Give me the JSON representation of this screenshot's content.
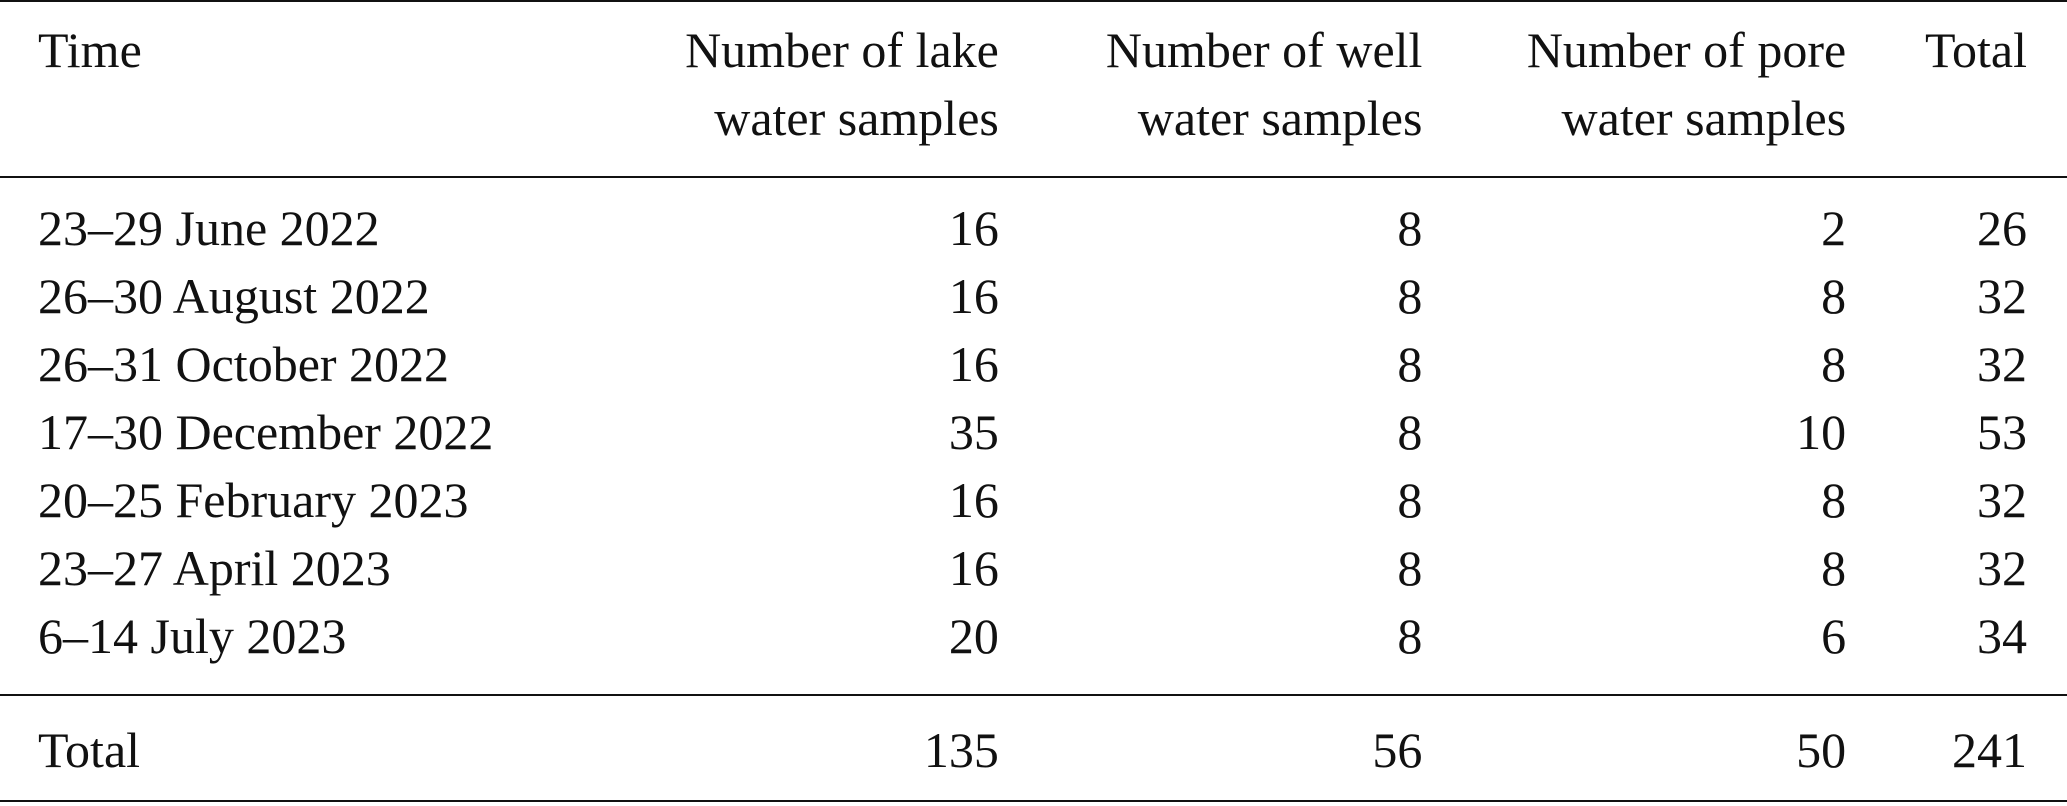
{
  "table": {
    "headers": [
      [
        "Time",
        ""
      ],
      [
        "Number of lake",
        "water samples"
      ],
      [
        "Number of well",
        "water samples"
      ],
      [
        "Number of pore",
        "water samples"
      ],
      [
        "Total",
        ""
      ]
    ],
    "rows": [
      [
        "23–29 June 2022",
        "16",
        "8",
        "2",
        "26"
      ],
      [
        "26–30 August 2022",
        "16",
        "8",
        "8",
        "32"
      ],
      [
        "26–31 October 2022",
        "16",
        "8",
        "8",
        "32"
      ],
      [
        "17–30 December 2022",
        "35",
        "8",
        "10",
        "53"
      ],
      [
        "20–25 February 2023",
        "16",
        "8",
        "8",
        "32"
      ],
      [
        "23–27 April 2023",
        "16",
        "8",
        "8",
        "32"
      ],
      [
        "6–14 July 2023",
        "20",
        "8",
        "6",
        "34"
      ]
    ],
    "total_row": [
      "Total",
      "135",
      "56",
      "50",
      "241"
    ]
  }
}
